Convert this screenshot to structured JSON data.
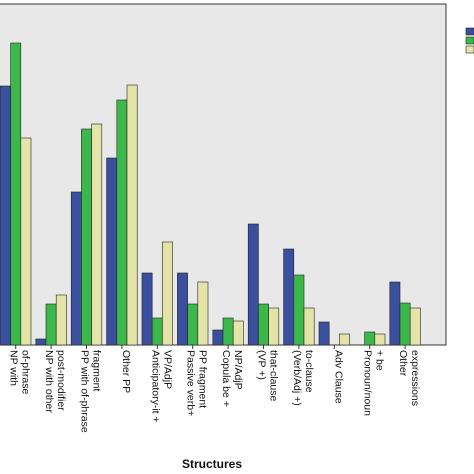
{
  "chart_data": {
    "type": "bar",
    "x_label": "Structures",
    "categories": [
      [
        "NP with",
        "of-phrase"
      ],
      [
        "NP with other",
        "post-modifier"
      ],
      [
        "PP with of-phrase",
        "fragment"
      ],
      [
        "Other PP"
      ],
      [
        "Anticipatory-it +",
        "VP/AdjP"
      ],
      [
        "Passive verb+",
        "PP fragment"
      ],
      [
        "Copula be +",
        "NP/AdjP"
      ],
      [
        "(VP +)",
        "that-clause"
      ],
      [
        "(Verb/Adj +)",
        "to-clause"
      ],
      [
        "Adv Clause"
      ],
      [
        "Pronoun/noun",
        "+ be"
      ],
      [
        "Other",
        "expressions"
      ]
    ],
    "series": [
      {
        "color": "#3a4f9e",
        "values": [
          259,
          6,
          153,
          187,
          72,
          72,
          15,
          121,
          96,
          23,
          0,
          63
        ]
      },
      {
        "color": "#3cb84a",
        "values": [
          302,
          41,
          216,
          245,
          27,
          41,
          27,
          41,
          70,
          0,
          13,
          42
        ]
      },
      {
        "color": "#e4e4a8",
        "values": [
          207,
          50,
          221,
          260,
          103,
          63,
          24,
          37,
          37,
          11,
          11,
          37
        ]
      }
    ],
    "ylim": [
      0,
      341
    ]
  }
}
